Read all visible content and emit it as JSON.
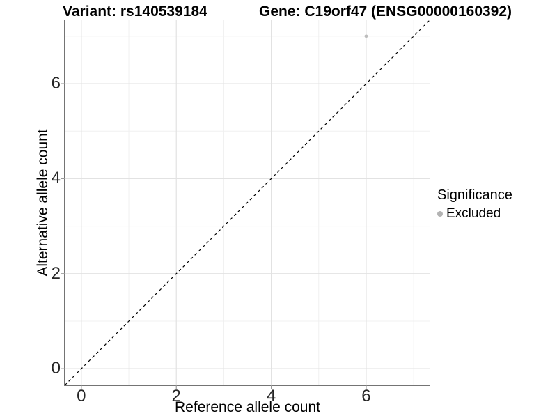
{
  "page": {
    "background": "#ffffff"
  },
  "header": {
    "title_left": "Variant: rs140539184",
    "title_right": "Gene: C19orf47 (ENSG00000160392)"
  },
  "chart_data": {
    "type": "scatter",
    "title": "Variant: rs140539184   Gene: C19orf47 (ENSG00000160392)",
    "xlabel": "Reference allele count",
    "ylabel": "Alternative allele count",
    "xlim": [
      -0.35,
      7.35
    ],
    "ylim": [
      -0.35,
      7.35
    ],
    "x_ticks": [
      0,
      2,
      4,
      6
    ],
    "y_ticks": [
      0,
      2,
      4,
      6
    ],
    "x_minor_ticks": [
      1,
      3,
      5,
      7
    ],
    "y_minor_ticks": [
      1,
      3,
      5,
      7
    ],
    "grid": "major and minor horizontal+vertical, light gray on white",
    "identity_line": {
      "style": "dashed",
      "meaning": "y = x",
      "from": [
        -0.35,
        -0.35
      ],
      "to": [
        7.35,
        7.35
      ],
      "color": "#000000"
    },
    "series": [
      {
        "name": "Excluded",
        "marker": "circle",
        "color": "#bdbdbd",
        "points": [
          {
            "x": 6,
            "y": 7
          }
        ]
      }
    ],
    "legend": {
      "title": "Significance",
      "position": "right",
      "entries": [
        {
          "label": "Excluded",
          "color": "#b3b3b3"
        }
      ]
    },
    "colors": {
      "grid_major": "#e2e2e2",
      "grid_minor": "#f0f0f0",
      "axis_line": "#474747",
      "tick_mark": "#999999",
      "tick_label": "#262626",
      "text": "#000000"
    }
  }
}
